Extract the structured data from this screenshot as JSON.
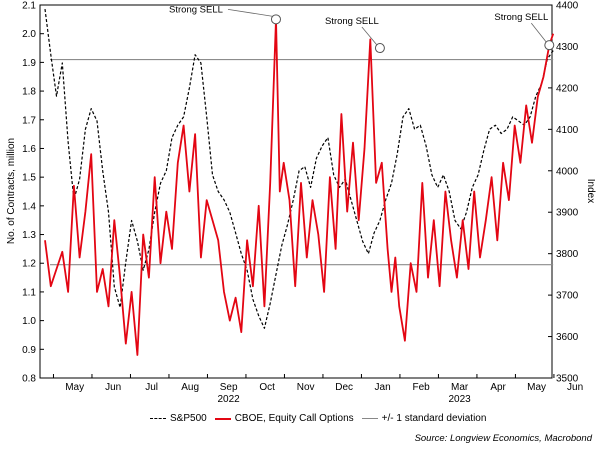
{
  "chart_data": {
    "type": "line",
    "title": "",
    "ylabel_left": "No. of Contracts, million",
    "ylabel_right": "Index",
    "ylim_left": [
      0.8,
      2.1
    ],
    "ylim_right": [
      3500,
      4400
    ],
    "yticks_left": [
      "0.8",
      "0.9",
      "1.0",
      "1.1",
      "1.2",
      "1.3",
      "1.4",
      "1.5",
      "1.6",
      "1.7",
      "1.8",
      "1.9",
      "2.0",
      "2.1"
    ],
    "yticks_right": [
      "3500",
      "3600",
      "3700",
      "3800",
      "3900",
      "4000",
      "4100",
      "4200",
      "4300",
      "4400"
    ],
    "months": [
      "May",
      "Jun",
      "Jul",
      "Aug",
      "Sep",
      "Oct",
      "Nov",
      "Dec",
      "Jan",
      "Feb",
      "Mar",
      "Apr",
      "May",
      "Jun"
    ],
    "years": [
      "2022",
      "2023"
    ],
    "std_dev_upper": 1.91,
    "std_dev_lower": 1.195,
    "series": [
      {
        "name": "S&P500",
        "axis": "right",
        "color": "#000000",
        "style": "dashed",
        "x": [
          0,
          0.15,
          0.3,
          0.45,
          0.6,
          0.75,
          0.9,
          1.05,
          1.2,
          1.35,
          1.5,
          1.65,
          1.8,
          1.95,
          2.1,
          2.25,
          2.4,
          2.55,
          2.7,
          2.85,
          3.0,
          3.15,
          3.3,
          3.45,
          3.6,
          3.75,
          3.9,
          4.05,
          4.2,
          4.35,
          4.5,
          4.65,
          4.8,
          4.95,
          5.1,
          5.25,
          5.4,
          5.55,
          5.7,
          5.85,
          6.0,
          6.15,
          6.3,
          6.45,
          6.6,
          6.75,
          6.9,
          7.05,
          7.2,
          7.35,
          7.5,
          7.65,
          7.8,
          7.95,
          8.1,
          8.25,
          8.4,
          8.55,
          8.7,
          8.85,
          9.0,
          9.15,
          9.3,
          9.45,
          9.6,
          9.75,
          9.9,
          10.05,
          10.2,
          10.35,
          10.5,
          10.65,
          10.8,
          10.95,
          11.1,
          11.25,
          11.4,
          11.55,
          11.7,
          11.85,
          12.0,
          12.15,
          12.3,
          12.45,
          12.6,
          12.75,
          12.9,
          13.05,
          13.2
        ],
        "values": [
          4390,
          4280,
          4180,
          4260,
          4070,
          3930,
          3980,
          4100,
          4150,
          4120,
          4000,
          3900,
          3720,
          3670,
          3780,
          3880,
          3830,
          3760,
          3810,
          3900,
          3970,
          4000,
          4080,
          4110,
          4130,
          4200,
          4280,
          4260,
          4130,
          3990,
          3950,
          3930,
          3900,
          3850,
          3800,
          3760,
          3690,
          3650,
          3620,
          3680,
          3750,
          3820,
          3870,
          3930,
          4000,
          4010,
          3960,
          4030,
          4060,
          4080,
          3990,
          3960,
          3980,
          3930,
          3880,
          3830,
          3800,
          3850,
          3880,
          3930,
          3970,
          4040,
          4130,
          4150,
          4100,
          4110,
          4060,
          3990,
          3960,
          3990,
          3950,
          3880,
          3860,
          3900,
          3960,
          3990,
          4050,
          4100,
          4110,
          4090,
          4100,
          4130,
          4120,
          4110,
          4130,
          4180,
          4210,
          4270,
          4290
        ]
      },
      {
        "name": "CBOE, Equity Call Options",
        "axis": "left",
        "color": "#e30613",
        "style": "solid",
        "x": [
          0,
          0.15,
          0.3,
          0.45,
          0.6,
          0.75,
          0.9,
          1.05,
          1.2,
          1.35,
          1.5,
          1.65,
          1.8,
          1.95,
          2.1,
          2.25,
          2.4,
          2.55,
          2.7,
          2.85,
          3.0,
          3.15,
          3.3,
          3.45,
          3.6,
          3.75,
          3.9,
          4.05,
          4.2,
          4.35,
          4.5,
          4.65,
          4.8,
          4.95,
          5.1,
          5.25,
          5.4,
          5.55,
          5.7,
          5.85,
          6.0,
          6.1,
          6.2,
          6.35,
          6.5,
          6.65,
          6.8,
          6.95,
          7.1,
          7.25,
          7.4,
          7.55,
          7.7,
          7.85,
          8.0,
          8.15,
          8.3,
          8.45,
          8.6,
          8.75,
          8.9,
          9.0,
          9.1,
          9.2,
          9.35,
          9.5,
          9.65,
          9.8,
          9.95,
          10.1,
          10.25,
          10.4,
          10.55,
          10.7,
          10.85,
          11.0,
          11.15,
          11.3,
          11.45,
          11.6,
          11.75,
          11.9,
          12.05,
          12.2,
          12.35,
          12.5,
          12.65,
          12.8,
          12.95,
          13.1,
          13.2
        ],
        "values": [
          1.28,
          1.12,
          1.18,
          1.24,
          1.1,
          1.47,
          1.22,
          1.38,
          1.58,
          1.1,
          1.18,
          1.05,
          1.35,
          1.15,
          0.92,
          1.1,
          0.88,
          1.3,
          1.15,
          1.5,
          1.2,
          1.38,
          1.25,
          1.55,
          1.68,
          1.45,
          1.65,
          1.22,
          1.42,
          1.35,
          1.28,
          1.1,
          1.0,
          1.08,
          0.96,
          1.28,
          1.12,
          1.4,
          1.05,
          1.48,
          2.05,
          1.45,
          1.55,
          1.42,
          1.12,
          1.48,
          1.22,
          1.42,
          1.3,
          1.1,
          1.5,
          1.25,
          1.72,
          1.38,
          1.62,
          1.35,
          1.6,
          1.98,
          1.48,
          1.55,
          1.25,
          1.1,
          1.22,
          1.05,
          0.93,
          1.2,
          1.1,
          1.48,
          1.15,
          1.35,
          1.12,
          1.45,
          1.28,
          1.15,
          1.35,
          1.18,
          1.45,
          1.22,
          1.35,
          1.5,
          1.28,
          1.55,
          1.42,
          1.68,
          1.55,
          1.75,
          1.62,
          1.78,
          1.85,
          1.96,
          2.0
        ]
      }
    ],
    "annotations": [
      {
        "text": "Strong SELL",
        "x": 6.0,
        "y": 2.05
      },
      {
        "text": "Strong SELL",
        "x": 8.7,
        "y": 1.95
      },
      {
        "text": "Strong SELL",
        "x": 13.1,
        "y": 1.96
      }
    ]
  },
  "legend": {
    "sp500": "S&P500",
    "cboe": "CBOE, Equity Call Options",
    "std": "+/- 1 standard deviation"
  },
  "source": "Source: Longview Economics, Macrobond"
}
